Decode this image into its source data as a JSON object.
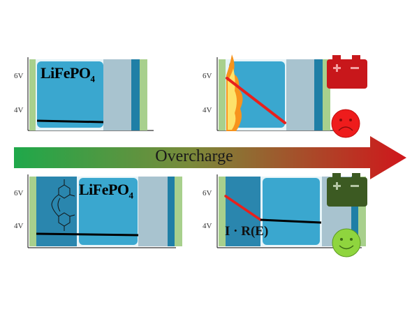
{
  "arrow": {
    "label": "Overcharge",
    "color_start": "#1fa84a",
    "color_end": "#d0161b"
  },
  "axis": {
    "tick_high": "6V",
    "tick_low": "4V"
  },
  "panels": {
    "top_left": {
      "material": "LiFePO",
      "material_sub": "4"
    },
    "top_right": {
      "battery_state": "failed",
      "face": "sad"
    },
    "bottom_left": {
      "material": "LiFePO",
      "material_sub": "4",
      "additive": "redox-shuttle-molecule"
    },
    "bottom_right": {
      "label": "I · R(E)",
      "battery_state": "protected",
      "face": "happy"
    }
  },
  "colors": {
    "green_strip": "#a8d08d",
    "particle_blue": "#3aa7cf",
    "separator_gray": "#a8c3cf",
    "dark_blue": "#1f7fa6",
    "shuttle_layer": "#2a86ae",
    "red_line": "#e8201c",
    "battery_red": "#c8171b",
    "battery_green": "#3c5a22",
    "face_red": "#ee1c1c",
    "face_green": "#8fd53e"
  }
}
